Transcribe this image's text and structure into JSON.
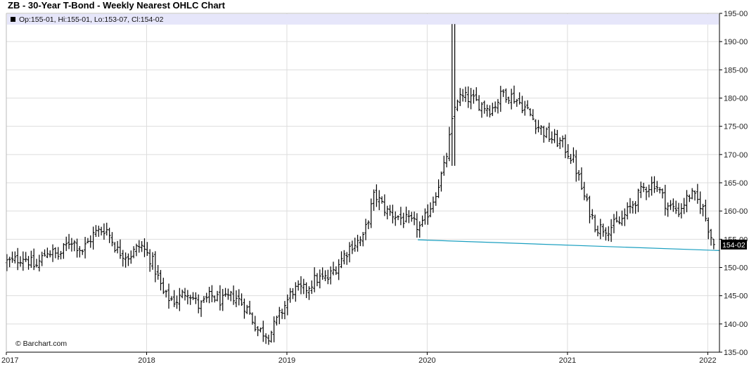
{
  "title": "ZB - 30-Year T-Bond - Weekly Nearest OHLC Chart",
  "info_bar": "Op:155-01, Hi:155-01, Lo:153-07, Cl:154-02",
  "credit": "© Barchart.com",
  "colors": {
    "bars": "#000000",
    "trendline": "#1a9fc0",
    "info_bg": "#e6e6fa",
    "grid": "#dddddd",
    "last_bg": "#000000"
  },
  "chart_data": {
    "type": "ohlc",
    "title": "ZB - 30-Year T-Bond - Weekly Nearest OHLC Chart",
    "x_axis": {
      "labels": [
        "2017",
        "2018",
        "2019",
        "2020",
        "2021",
        "2022"
      ],
      "range": [
        "2017-01",
        "2022-02"
      ]
    },
    "y_axis": {
      "labels": [
        "135-00",
        "140-00",
        "145-00",
        "150-00",
        "155-00",
        "160-00",
        "165-00",
        "170-00",
        "175-00",
        "180-00",
        "185-00",
        "190-00",
        "195-00"
      ],
      "range": [
        135,
        195
      ],
      "position": "right"
    },
    "grid": true,
    "last_price_label": "154-02",
    "last_bar": {
      "open": "155-01",
      "high": "155-01",
      "low": "153-07",
      "close": "154-02"
    },
    "trendline": {
      "from": {
        "date": "2019-12",
        "value": 154.9
      },
      "to": {
        "date": "2022-02",
        "value": 153.0
      }
    },
    "series_anchors": [
      {
        "date": "2017-01",
        "close": 151
      },
      {
        "date": "2017-02",
        "close": 152
      },
      {
        "date": "2017-03",
        "close": 150
      },
      {
        "date": "2017-04",
        "close": 153
      },
      {
        "date": "2017-05",
        "close": 152
      },
      {
        "date": "2017-06",
        "close": 155
      },
      {
        "date": "2017-07",
        "close": 153
      },
      {
        "date": "2017-08",
        "close": 156
      },
      {
        "date": "2017-09",
        "close": 157
      },
      {
        "date": "2017-10",
        "close": 153
      },
      {
        "date": "2017-11",
        "close": 152
      },
      {
        "date": "2017-12",
        "close": 154
      },
      {
        "date": "2018-01",
        "close": 151
      },
      {
        "date": "2018-02",
        "close": 145
      },
      {
        "date": "2018-03",
        "close": 144
      },
      {
        "date": "2018-04",
        "close": 146
      },
      {
        "date": "2018-05",
        "close": 143
      },
      {
        "date": "2018-06",
        "close": 145
      },
      {
        "date": "2018-07",
        "close": 144
      },
      {
        "date": "2018-08",
        "close": 145
      },
      {
        "date": "2018-09",
        "close": 143
      },
      {
        "date": "2018-10",
        "close": 139
      },
      {
        "date": "2018-11",
        "close": 138
      },
      {
        "date": "2018-12",
        "close": 142
      },
      {
        "date": "2019-01",
        "close": 146
      },
      {
        "date": "2019-02",
        "close": 146
      },
      {
        "date": "2019-03",
        "close": 148
      },
      {
        "date": "2019-04",
        "close": 148
      },
      {
        "date": "2019-05",
        "close": 151
      },
      {
        "date": "2019-06",
        "close": 154
      },
      {
        "date": "2019-07",
        "close": 155
      },
      {
        "date": "2019-08",
        "close": 163
      },
      {
        "date": "2019-09",
        "close": 160
      },
      {
        "date": "2019-10",
        "close": 159
      },
      {
        "date": "2019-11",
        "close": 158
      },
      {
        "date": "2019-12",
        "close": 157
      },
      {
        "date": "2020-01",
        "close": 162
      },
      {
        "date": "2020-02",
        "close": 168
      },
      {
        "date": "2020-03",
        "close": 180
      },
      {
        "date": "2020-04",
        "close": 180
      },
      {
        "date": "2020-05",
        "close": 179
      },
      {
        "date": "2020-06",
        "close": 178
      },
      {
        "date": "2020-07",
        "close": 181
      },
      {
        "date": "2020-08",
        "close": 180
      },
      {
        "date": "2020-09",
        "close": 178
      },
      {
        "date": "2020-10",
        "close": 175
      },
      {
        "date": "2020-11",
        "close": 173
      },
      {
        "date": "2020-12",
        "close": 172
      },
      {
        "date": "2021-01",
        "close": 169
      },
      {
        "date": "2021-02",
        "close": 162
      },
      {
        "date": "2021-03",
        "close": 157
      },
      {
        "date": "2021-04",
        "close": 157
      },
      {
        "date": "2021-05",
        "close": 158
      },
      {
        "date": "2021-06",
        "close": 161
      },
      {
        "date": "2021-07",
        "close": 164
      },
      {
        "date": "2021-08",
        "close": 165
      },
      {
        "date": "2021-09",
        "close": 161
      },
      {
        "date": "2021-10",
        "close": 160
      },
      {
        "date": "2021-11",
        "close": 163
      },
      {
        "date": "2021-12",
        "close": 161
      },
      {
        "date": "2022-01",
        "close": 154
      }
    ]
  }
}
